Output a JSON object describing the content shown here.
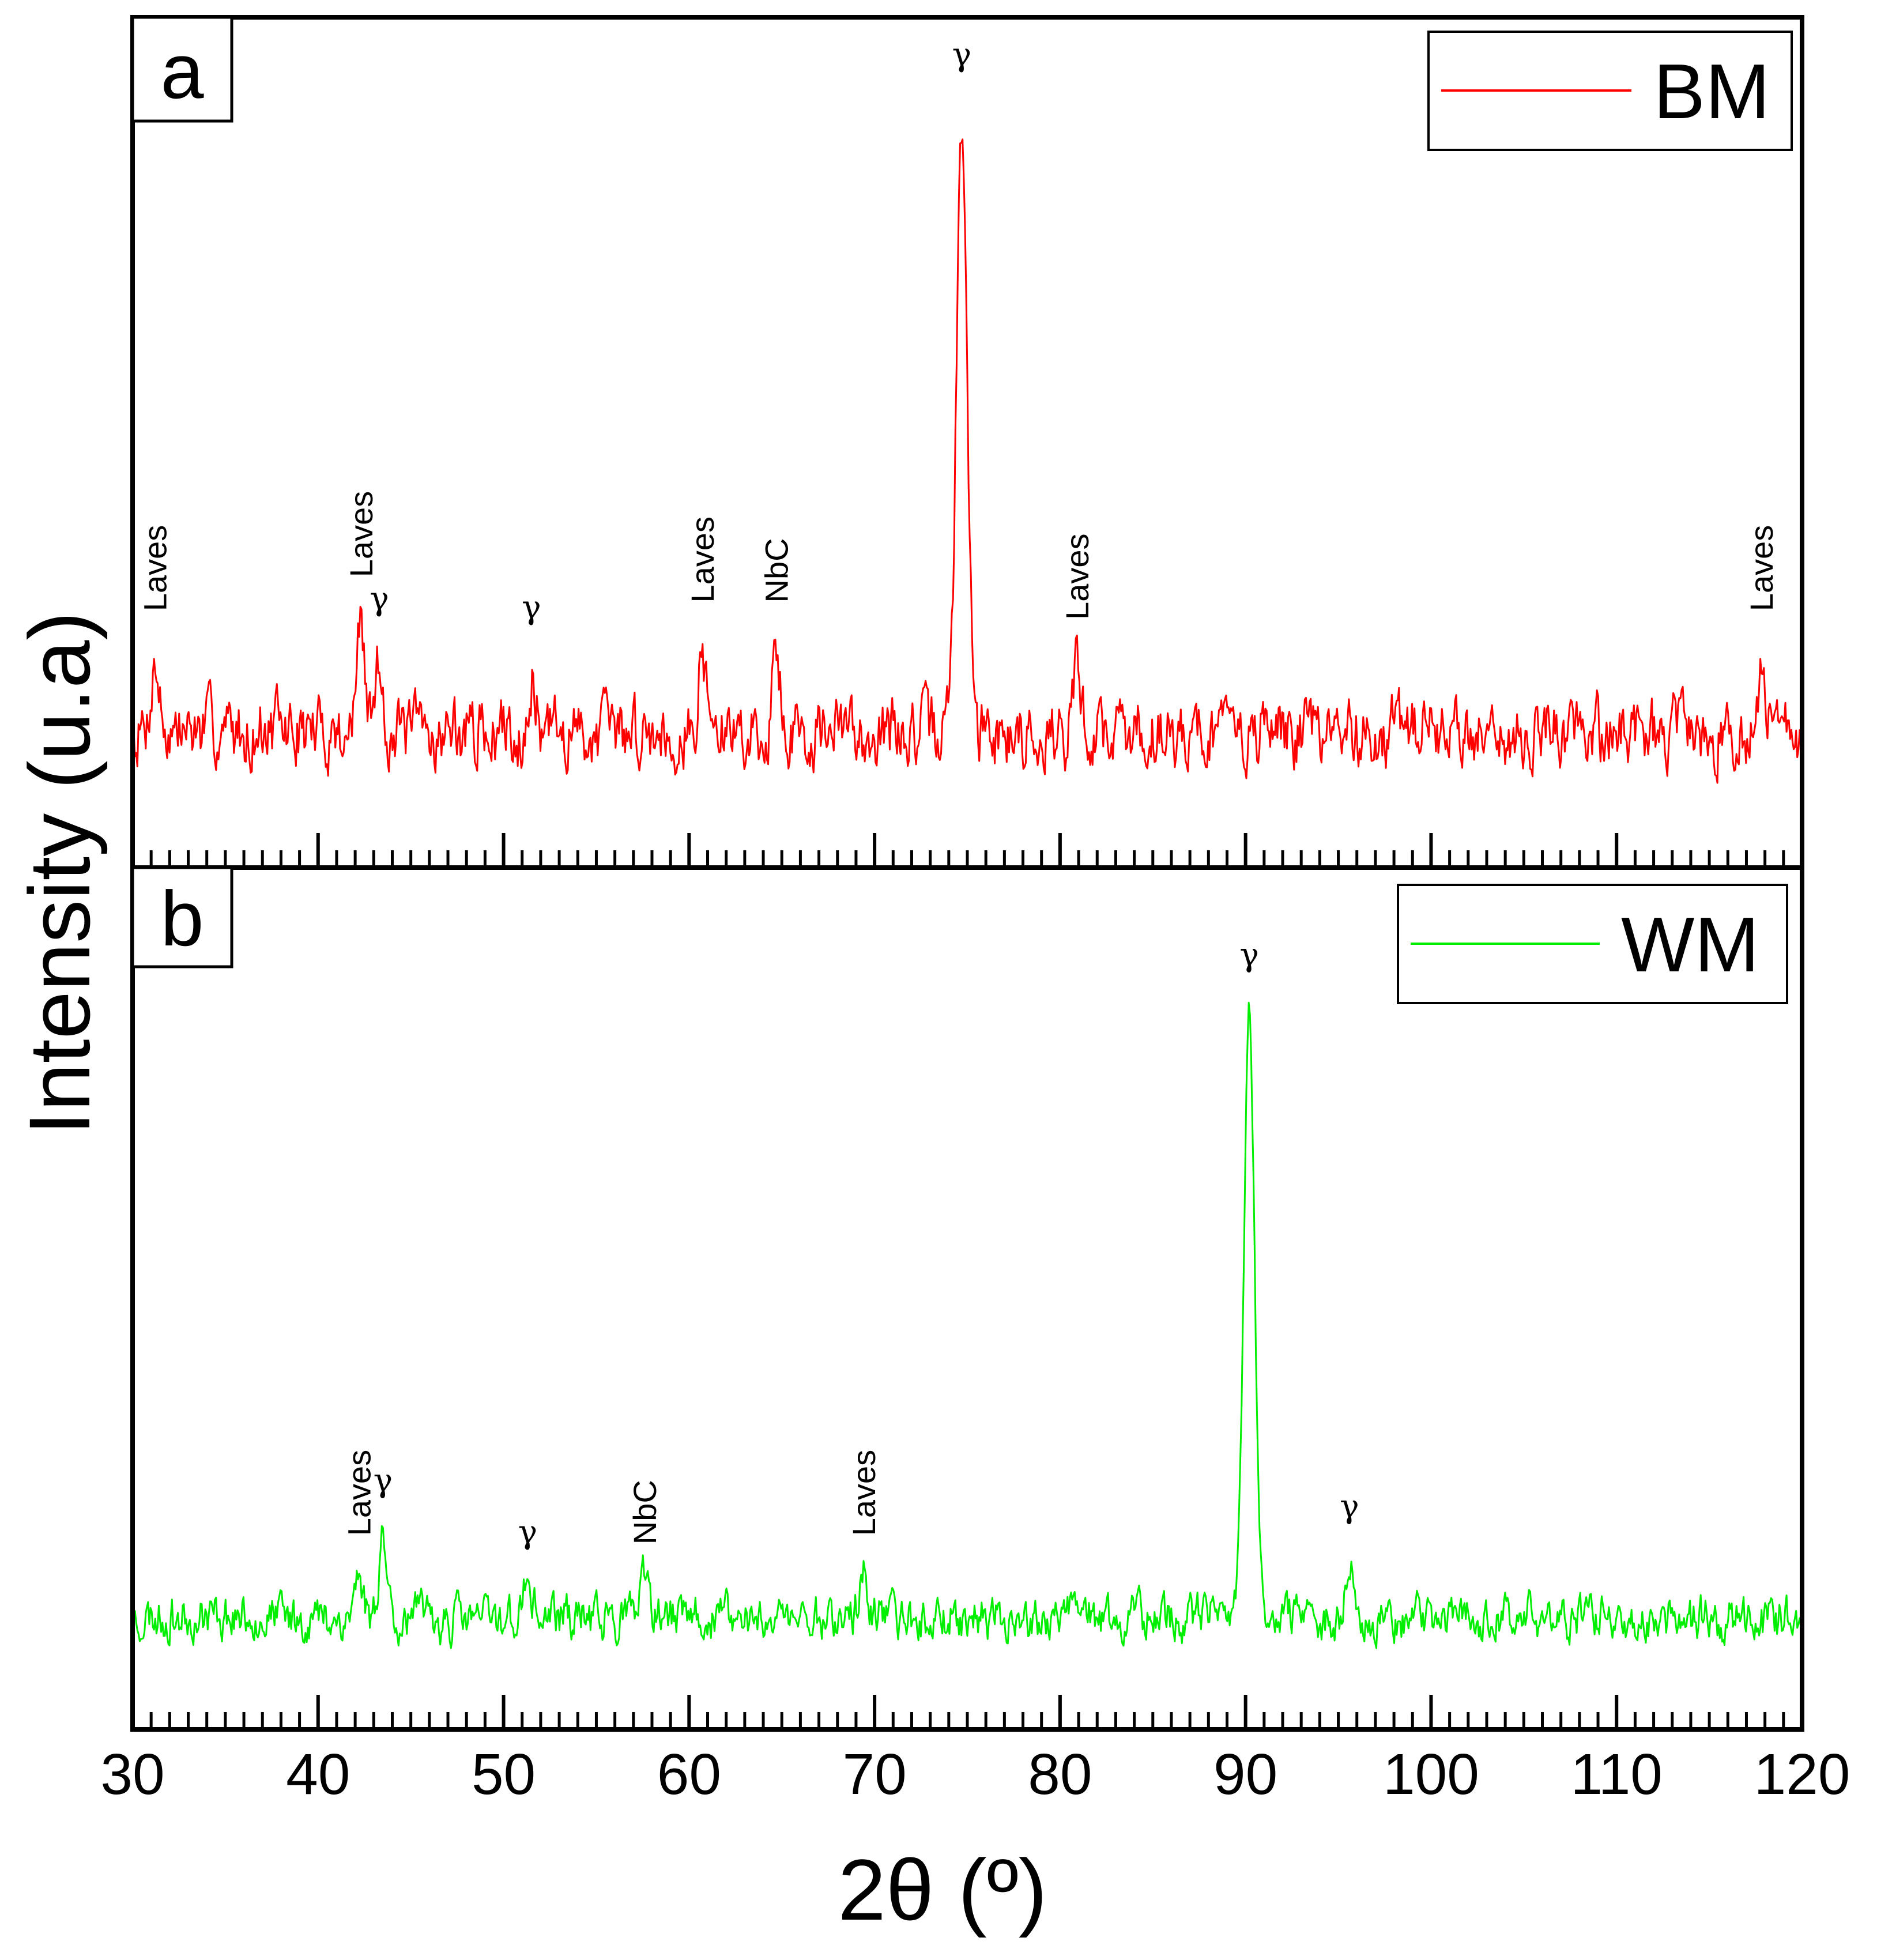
{
  "chart_data": {
    "type": "line",
    "ylabel": "Intensity (u.a)",
    "xlabel": "2θ (º)",
    "xlim": [
      30,
      120
    ],
    "x_ticks": [
      "30",
      "40",
      "50",
      "60",
      "70",
      "80",
      "90",
      "100",
      "110",
      "120"
    ],
    "x_tick_values": [
      30,
      40,
      50,
      60,
      70,
      80,
      90,
      100,
      110,
      120
    ],
    "y_tick_labels_shown": false,
    "panels": [
      {
        "letter": "a",
        "series_name": "BM",
        "color": "#ff0000",
        "ylim": [
          0,
          100
        ],
        "baseline": 16,
        "noise_amplitude": 4,
        "seed": 7,
        "peaks": [
          {
            "x": 31.2,
            "height": 8,
            "label": "Laves"
          },
          {
            "x": 42.3,
            "height": 12,
            "label": "Laves"
          },
          {
            "x": 43.3,
            "height": 8,
            "label": "γ"
          },
          {
            "x": 51.5,
            "height": 7,
            "label": "γ"
          },
          {
            "x": 60.7,
            "height": 9,
            "label": "Laves"
          },
          {
            "x": 64.7,
            "height": 9,
            "label": "NbC"
          },
          {
            "x": 74.7,
            "height": 72,
            "label": "γ"
          },
          {
            "x": 80.9,
            "height": 7,
            "label": "Laves"
          },
          {
            "x": 117.8,
            "height": 8,
            "label": "Laves"
          }
        ]
      },
      {
        "letter": "b",
        "series_name": "WM",
        "color": "#00ee00",
        "ylim": [
          0,
          100
        ],
        "baseline": 13,
        "noise_amplitude": 2.6,
        "seed": 23,
        "peaks": [
          {
            "x": 42.2,
            "height": 5,
            "label": "Laves"
          },
          {
            "x": 43.5,
            "height": 10,
            "label": "γ"
          },
          {
            "x": 51.3,
            "height": 4,
            "label": "γ"
          },
          {
            "x": 57.6,
            "height": 4,
            "label": "NbC"
          },
          {
            "x": 69.4,
            "height": 5,
            "label": "Laves"
          },
          {
            "x": 90.2,
            "height": 71,
            "label": "γ"
          },
          {
            "x": 95.6,
            "height": 7,
            "label": "γ"
          }
        ]
      }
    ]
  }
}
